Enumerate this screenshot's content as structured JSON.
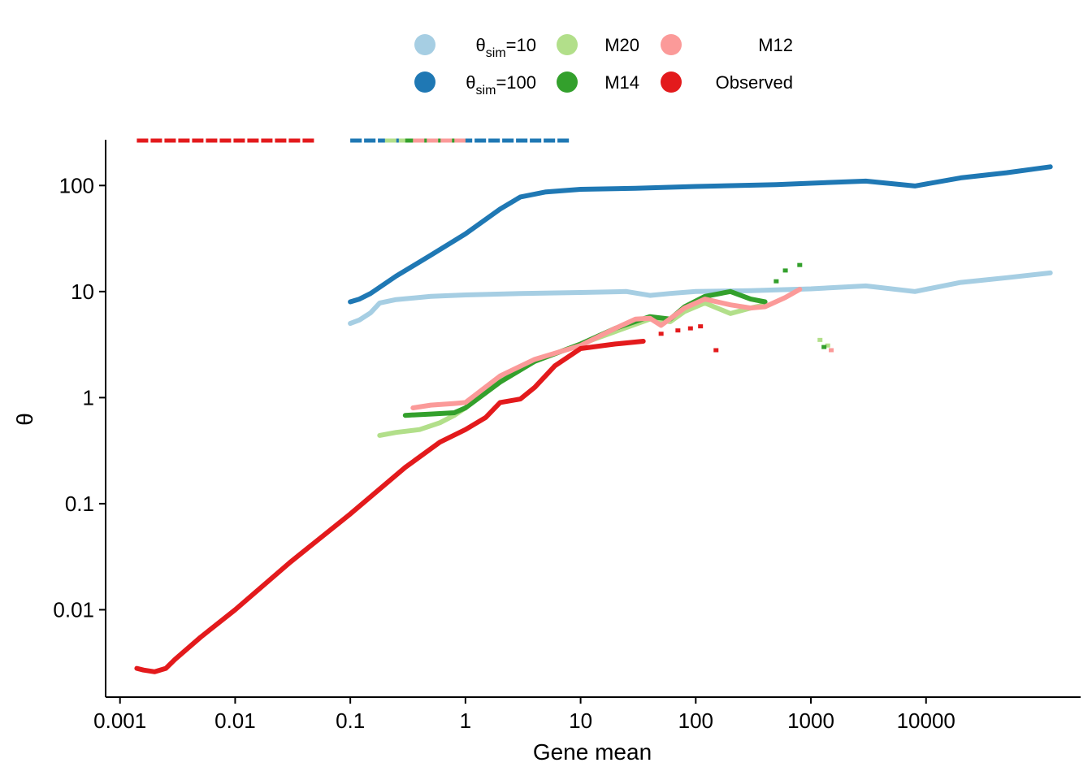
{
  "chart_data": {
    "type": "line",
    "xlabel": "Gene mean",
    "ylabel": "θ",
    "x_scale": "log10",
    "y_scale": "log10",
    "xlim": [
      0.00075,
      220000
    ],
    "ylim": [
      0.0015,
      270
    ],
    "x_ticks": [
      0.001,
      0.01,
      0.1,
      1,
      10,
      100,
      1000,
      10000
    ],
    "x_tick_labels": [
      "0.001",
      "0.01",
      "0.1",
      "1",
      "10",
      "100",
      "1000",
      "10000"
    ],
    "y_ticks": [
      0.01,
      0.1,
      1,
      10,
      100
    ],
    "y_tick_labels": [
      "0.01",
      "0.1",
      "1",
      "10",
      "100"
    ],
    "grid": false,
    "legend_position": "top",
    "series": [
      {
        "name": "θsim=10",
        "label_main": "θ",
        "label_sub": "sim",
        "label_tail": "=10",
        "color": "#a6cee3",
        "points": [
          [
            0.1,
            5.0
          ],
          [
            0.12,
            5.4
          ],
          [
            0.15,
            6.3
          ],
          [
            0.18,
            7.8
          ],
          [
            0.25,
            8.4
          ],
          [
            0.5,
            9.0
          ],
          [
            1,
            9.3
          ],
          [
            3,
            9.6
          ],
          [
            10,
            9.8
          ],
          [
            25,
            10.0
          ],
          [
            40,
            9.2
          ],
          [
            60,
            9.6
          ],
          [
            100,
            10.0
          ],
          [
            300,
            10.2
          ],
          [
            1000,
            10.6
          ],
          [
            3000,
            11.3
          ],
          [
            8000,
            10.0
          ],
          [
            20000,
            12.2
          ],
          [
            50000,
            13.5
          ],
          [
            120000,
            15.0
          ]
        ],
        "top_clip": [
          0.1,
          8
        ]
      },
      {
        "name": "θsim=100",
        "label_main": "θ",
        "label_sub": "sim",
        "label_tail": "=100",
        "color": "#1f78b4",
        "points": [
          [
            0.1,
            8.0
          ],
          [
            0.12,
            8.5
          ],
          [
            0.15,
            9.6
          ],
          [
            0.25,
            14
          ],
          [
            0.5,
            22
          ],
          [
            1,
            35
          ],
          [
            2,
            60
          ],
          [
            3,
            78
          ],
          [
            5,
            87
          ],
          [
            10,
            92
          ],
          [
            30,
            94
          ],
          [
            100,
            98
          ],
          [
            500,
            102
          ],
          [
            1000,
            105
          ],
          [
            3000,
            110
          ],
          [
            8000,
            99
          ],
          [
            20000,
            118
          ],
          [
            50000,
            132
          ],
          [
            120000,
            150
          ]
        ],
        "top_clip": [
          0.1,
          8
        ]
      },
      {
        "name": "M20",
        "color": "#b2df8a",
        "points": [
          [
            0.18,
            0.44
          ],
          [
            0.25,
            0.47
          ],
          [
            0.4,
            0.5
          ],
          [
            0.6,
            0.58
          ],
          [
            0.8,
            0.68
          ],
          [
            1,
            0.8
          ],
          [
            2,
            1.5
          ],
          [
            4,
            2.2
          ],
          [
            10,
            3.2
          ],
          [
            20,
            4.2
          ],
          [
            40,
            5.5
          ],
          [
            60,
            5.2
          ],
          [
            80,
            6.5
          ],
          [
            120,
            7.8
          ],
          [
            200,
            6.2
          ],
          [
            300,
            7.0
          ],
          [
            400,
            7.5
          ]
        ],
        "extra_points": [
          [
            1200,
            3.5
          ],
          [
            1400,
            3.1
          ]
        ],
        "top_clip": [
          0.2,
          0.6
        ]
      },
      {
        "name": "M14",
        "color": "#33a02c",
        "points": [
          [
            0.3,
            0.68
          ],
          [
            0.5,
            0.7
          ],
          [
            0.8,
            0.72
          ],
          [
            1,
            0.8
          ],
          [
            2,
            1.4
          ],
          [
            4,
            2.2
          ],
          [
            10,
            3.2
          ],
          [
            20,
            4.5
          ],
          [
            40,
            5.8
          ],
          [
            60,
            5.5
          ],
          [
            80,
            7.2
          ],
          [
            120,
            9.0
          ],
          [
            200,
            10.0
          ],
          [
            300,
            8.5
          ],
          [
            400,
            8.0
          ]
        ],
        "extra_points": [
          [
            600,
            15.8
          ],
          [
            800,
            17.8
          ],
          [
            500,
            12.5
          ],
          [
            1300,
            3.0
          ]
        ],
        "top_clip": [
          0.3,
          1.0
        ]
      },
      {
        "name": "M12",
        "color": "#fb9a99",
        "points": [
          [
            0.35,
            0.8
          ],
          [
            0.5,
            0.85
          ],
          [
            0.8,
            0.88
          ],
          [
            1,
            0.9
          ],
          [
            2,
            1.6
          ],
          [
            4,
            2.3
          ],
          [
            10,
            3.1
          ],
          [
            20,
            4.5
          ],
          [
            30,
            5.5
          ],
          [
            40,
            5.6
          ],
          [
            50,
            4.8
          ],
          [
            80,
            7.0
          ],
          [
            120,
            8.5
          ],
          [
            200,
            7.5
          ],
          [
            300,
            7.0
          ],
          [
            400,
            7.2
          ],
          [
            600,
            8.8
          ],
          [
            800,
            10.5
          ]
        ],
        "extra_points": [
          [
            1500,
            2.8
          ]
        ],
        "top_clip": [
          0.35,
          1.0
        ]
      },
      {
        "name": "Observed",
        "color": "#e31a1c",
        "points": [
          [
            0.0014,
            0.0028
          ],
          [
            0.0016,
            0.0027
          ],
          [
            0.002,
            0.0026
          ],
          [
            0.0025,
            0.0028
          ],
          [
            0.003,
            0.0034
          ],
          [
            0.005,
            0.0055
          ],
          [
            0.01,
            0.01
          ],
          [
            0.03,
            0.028
          ],
          [
            0.1,
            0.08
          ],
          [
            0.3,
            0.22
          ],
          [
            0.6,
            0.38
          ],
          [
            1,
            0.5
          ],
          [
            1.5,
            0.65
          ],
          [
            2,
            0.9
          ],
          [
            3,
            0.97
          ],
          [
            4,
            1.25
          ],
          [
            6,
            2.0
          ],
          [
            10,
            2.9
          ],
          [
            20,
            3.2
          ],
          [
            35,
            3.4
          ]
        ],
        "extra_points": [
          [
            50,
            4.0
          ],
          [
            70,
            4.3
          ],
          [
            90,
            4.5
          ],
          [
            110,
            4.7
          ],
          [
            150,
            2.8
          ]
        ],
        "top_clip": [
          0.0014,
          0.05
        ]
      }
    ]
  }
}
